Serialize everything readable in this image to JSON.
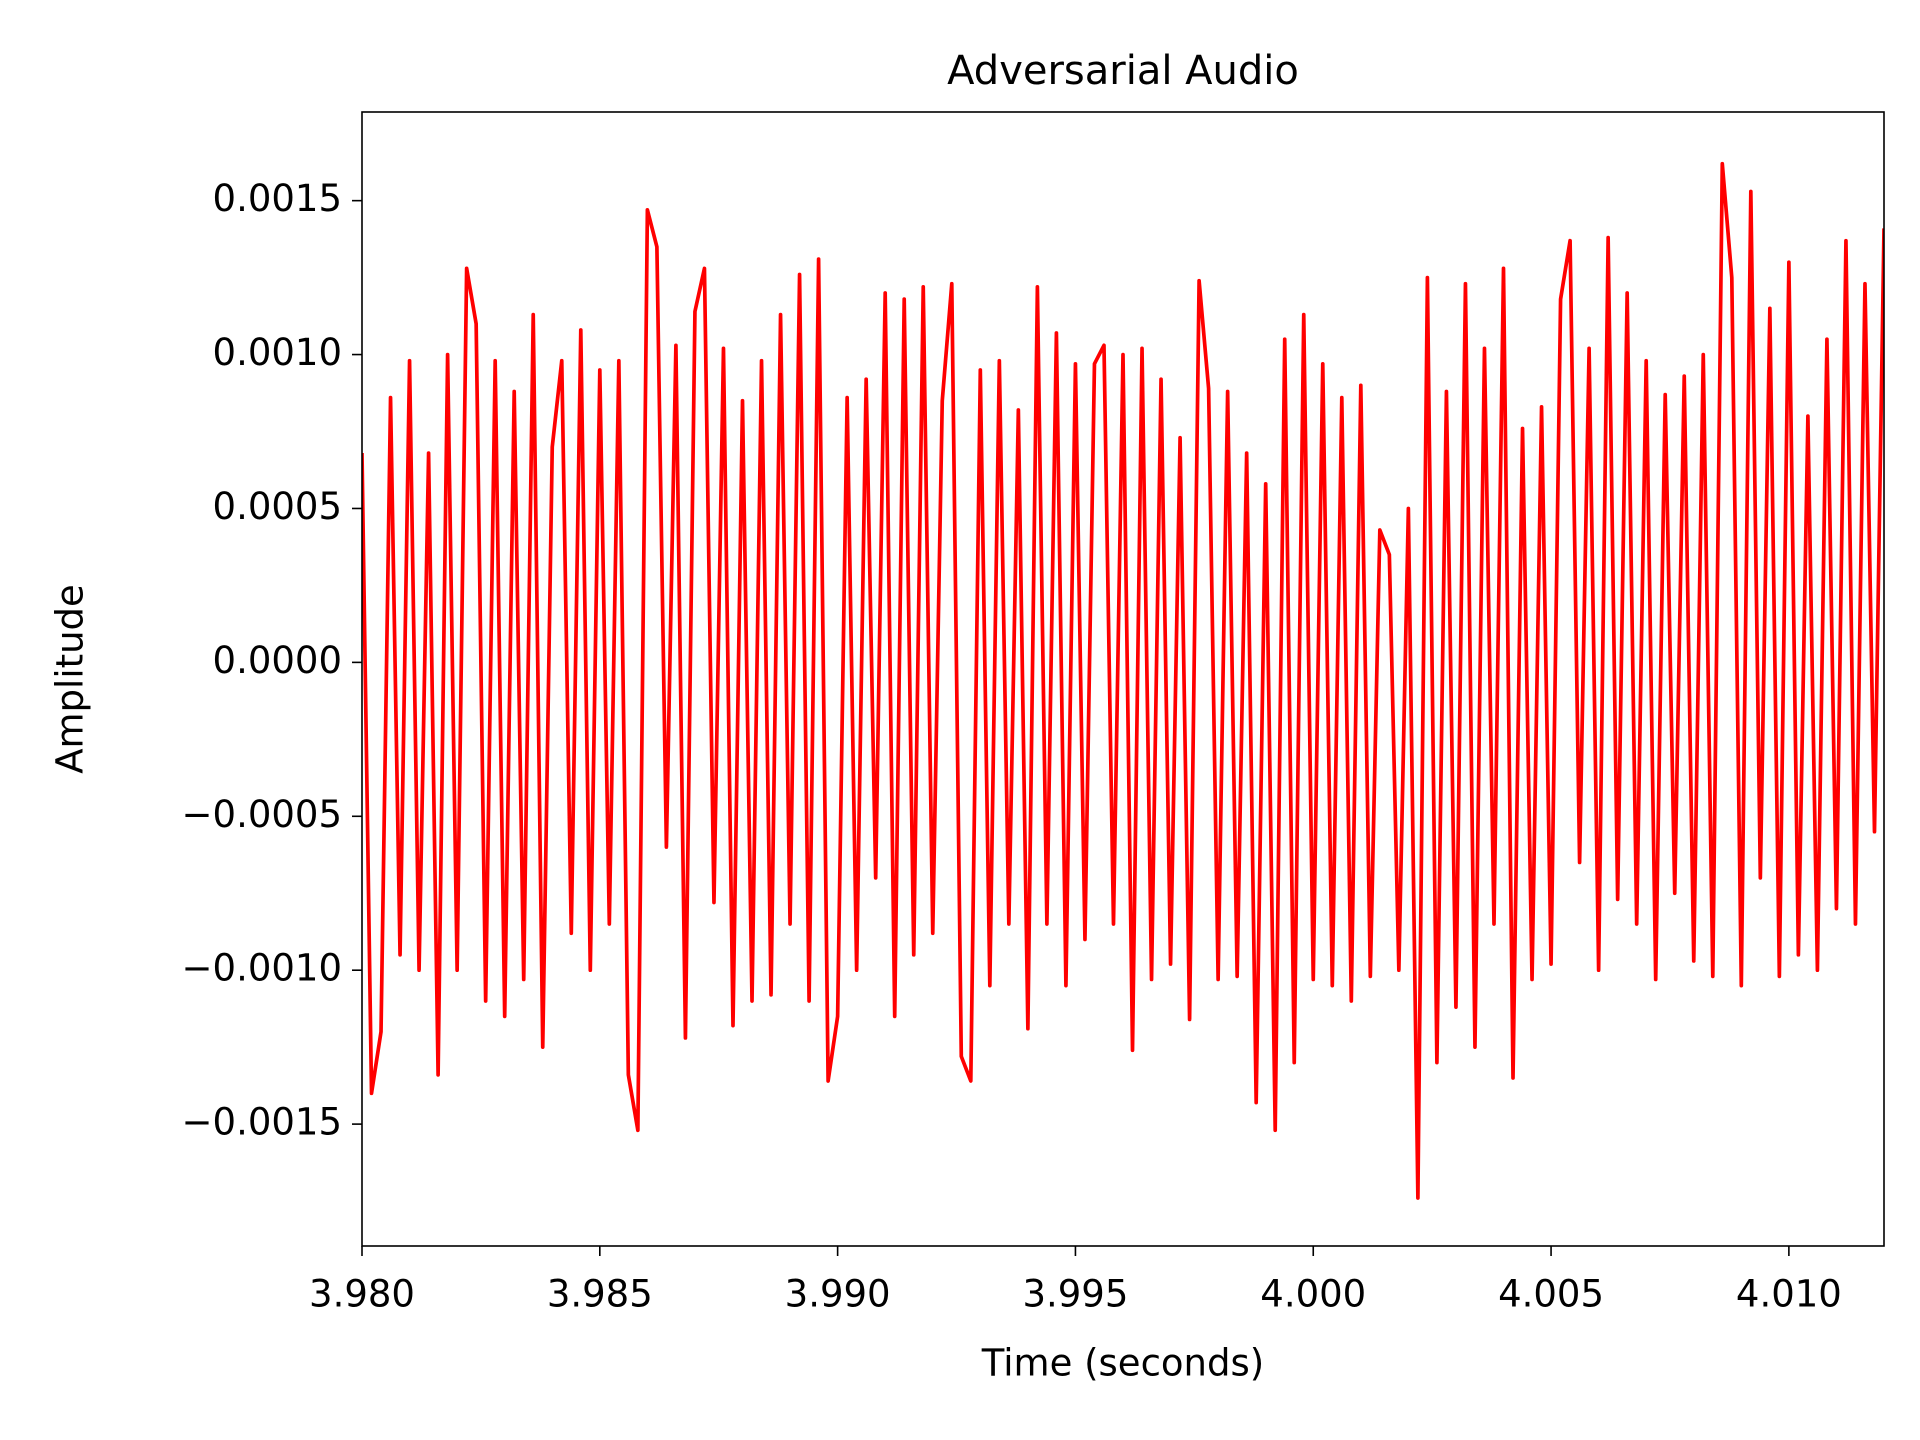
{
  "chart_data": {
    "type": "line",
    "title": "Adversarial Audio",
    "xlabel": "Time (seconds)",
    "ylabel": "Amplitude",
    "color": "#ff0000",
    "x": [
      3.98,
      3.9802,
      3.9804,
      3.9806,
      3.9808,
      3.981,
      3.9812,
      3.9814,
      3.9816,
      3.9818,
      3.982,
      3.9822,
      3.9824,
      3.9826,
      3.9828,
      3.983,
      3.9832,
      3.9834,
      3.9836,
      3.9838,
      3.984,
      3.9842,
      3.9844,
      3.9846,
      3.9848,
      3.985,
      3.9852,
      3.9854,
      3.9856,
      3.9858,
      3.986,
      3.9862,
      3.9864,
      3.9866,
      3.9868,
      3.987,
      3.9872,
      3.9874,
      3.9876,
      3.9878,
      3.988,
      3.9882,
      3.9884,
      3.9886,
      3.9888,
      3.989,
      3.9892,
      3.9894,
      3.9896,
      3.9898,
      3.99,
      3.9902,
      3.9904,
      3.9906,
      3.9908,
      3.991,
      3.9912,
      3.9914,
      3.9916,
      3.9918,
      3.992,
      3.9922,
      3.9924,
      3.9926,
      3.9928,
      3.993,
      3.9932,
      3.9934,
      3.9936,
      3.9938,
      3.994,
      3.9942,
      3.9944,
      3.9946,
      3.9948,
      3.995,
      3.9952,
      3.9954,
      3.9956,
      3.9958,
      3.996,
      3.9962,
      3.9964,
      3.9966,
      3.9968,
      3.997,
      3.9972,
      3.9974,
      3.9976,
      3.9978,
      3.998,
      3.9982,
      3.9984,
      3.9986,
      3.9988,
      3.999,
      3.9992,
      3.9994,
      3.9996,
      3.9998,
      4.0,
      4.0002,
      4.0004,
      4.0006,
      4.0008,
      4.001,
      4.0012,
      4.0014,
      4.0016,
      4.0018,
      4.002,
      4.0022,
      4.0024,
      4.0026,
      4.0028,
      4.003,
      4.0032,
      4.0034,
      4.0036,
      4.0038,
      4.004,
      4.0042,
      4.0044,
      4.0046,
      4.0048,
      4.005,
      4.0052,
      4.0054,
      4.0056,
      4.0058,
      4.006,
      4.0062,
      4.0064,
      4.0066,
      4.0068,
      4.007,
      4.0072,
      4.0074,
      4.0076,
      4.0078,
      4.008,
      4.0082,
      4.0084,
      4.0086,
      4.0088,
      4.009,
      4.0092,
      4.0094,
      4.0096,
      4.0098,
      4.01,
      4.0102,
      4.0104,
      4.0106,
      4.0108,
      4.011,
      4.0112,
      4.0114,
      4.0116,
      4.0118,
      4.012
    ],
    "values": [
      0.00068,
      -0.0014,
      -0.0012,
      0.00086,
      -0.00095,
      0.00098,
      -0.001,
      0.00068,
      -0.00134,
      0.001,
      -0.001,
      0.00128,
      0.0011,
      -0.0011,
      0.00098,
      -0.00115,
      0.00088,
      -0.00103,
      0.00113,
      -0.00125,
      0.0007,
      0.00098,
      -0.00088,
      0.00108,
      -0.001,
      0.00095,
      -0.00085,
      0.00098,
      -0.00134,
      -0.00152,
      0.00147,
      0.00135,
      -0.0006,
      0.00103,
      -0.00122,
      0.00114,
      0.00128,
      -0.00078,
      0.00102,
      -0.00118,
      0.00085,
      -0.0011,
      0.00098,
      -0.00108,
      0.00113,
      -0.00085,
      0.00126,
      -0.0011,
      0.00131,
      -0.00136,
      -0.00115,
      0.00086,
      -0.001,
      0.00092,
      -0.0007,
      0.0012,
      -0.00115,
      0.00118,
      -0.00095,
      0.00122,
      -0.00088,
      0.00085,
      0.00123,
      -0.00128,
      -0.00136,
      0.00095,
      -0.00105,
      0.00098,
      -0.00085,
      0.00082,
      -0.00119,
      0.00122,
      -0.00085,
      0.00107,
      -0.00105,
      0.00097,
      -0.0009,
      0.00097,
      0.00103,
      -0.00085,
      0.001,
      -0.00126,
      0.00102,
      -0.00103,
      0.00092,
      -0.00098,
      0.00073,
      -0.00116,
      0.00124,
      0.00089,
      -0.00103,
      0.00088,
      -0.00102,
      0.00068,
      -0.00143,
      0.00058,
      -0.00152,
      0.00105,
      -0.0013,
      0.00113,
      -0.00103,
      0.00097,
      -0.00105,
      0.00086,
      -0.0011,
      0.0009,
      -0.00102,
      0.00043,
      0.00035,
      -0.001,
      0.0005,
      -0.00174,
      0.00125,
      -0.0013,
      0.00088,
      -0.00112,
      0.00123,
      -0.00125,
      0.00102,
      -0.00085,
      0.00128,
      -0.00135,
      0.00076,
      -0.00103,
      0.00083,
      -0.00098,
      0.00118,
      0.00137,
      -0.00065,
      0.00102,
      -0.001,
      0.00138,
      -0.00077,
      0.0012,
      -0.00085,
      0.00098,
      -0.00103,
      0.00087,
      -0.00075,
      0.00093,
      -0.00097,
      0.001,
      -0.00102,
      0.00162,
      0.00125,
      -0.00105,
      0.00153,
      -0.0007,
      0.00115,
      -0.00102,
      0.0013,
      -0.00095,
      0.0008,
      -0.001,
      0.00105,
      -0.0008,
      0.00137,
      -0.00085,
      0.00123,
      -0.00055,
      0.00141
    ],
    "xlim": [
      3.98,
      4.012
    ],
    "xticks": [
      {
        "value": 3.98,
        "label": "3.980"
      },
      {
        "value": 3.985,
        "label": "3.985"
      },
      {
        "value": 3.99,
        "label": "3.990"
      },
      {
        "value": 3.995,
        "label": "3.995"
      },
      {
        "value": 4.0,
        "label": "4.000"
      },
      {
        "value": 4.005,
        "label": "4.005"
      },
      {
        "value": 4.01,
        "label": "4.010"
      }
    ],
    "ylim": [
      -0.001896,
      0.001788
    ],
    "yticks": [
      {
        "value": -0.0015,
        "label": "−0.0015"
      },
      {
        "value": -0.001,
        "label": "−0.0010"
      },
      {
        "value": -0.0005,
        "label": "−0.0005"
      },
      {
        "value": 0,
        "label": "0.0000"
      },
      {
        "value": 0.0005,
        "label": "0.0005"
      },
      {
        "value": 0.001,
        "label": "0.0010"
      },
      {
        "value": 0.0015,
        "label": "0.0015"
      }
    ],
    "grid": false
  }
}
